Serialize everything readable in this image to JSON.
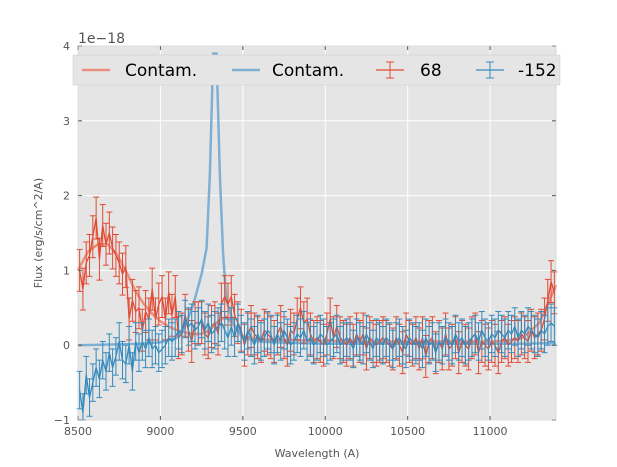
{
  "chart_data": {
    "type": "line",
    "title": "",
    "xlabel": "Wavelength (A)",
    "ylabel": "Flux (erg/s/cm^2/A)",
    "xlim": [
      8500,
      11400
    ],
    "ylim": [
      -1,
      4
    ],
    "y_offset_label": "1e−18",
    "x_ticks": [
      8500,
      9000,
      9500,
      10000,
      10500,
      11000
    ],
    "y_ticks": [
      -1,
      0,
      1,
      2,
      3,
      4
    ],
    "grid": true,
    "legend_position": "top",
    "colors": {
      "red": "#e24a33",
      "blue": "#348abd",
      "contam_red": "#e8907f",
      "contam_blue": "#7fb0d3",
      "plot_bg": "#e5e5e5",
      "grid": "#ffffff"
    },
    "legend": [
      {
        "label": "Contam.",
        "kind": "line",
        "color": "#e8907f"
      },
      {
        "label": "Contam.",
        "kind": "line",
        "color": "#7fb0d3"
      },
      {
        "label": "68",
        "kind": "errorbar",
        "color": "#e24a33"
      },
      {
        "label": "-152",
        "kind": "errorbar",
        "color": "#348abd"
      }
    ],
    "contam_red": {
      "x": [
        8500,
        8560,
        8620,
        8680,
        8740,
        8800,
        8850,
        8900,
        8950,
        9000,
        9050,
        9100,
        9150,
        9200,
        9250,
        9300,
        9350,
        9400,
        9450,
        9500,
        9600,
        9700,
        9800,
        9900,
        10000,
        10200,
        10400,
        10600,
        10800,
        11000,
        11100,
        11200,
        11300,
        11400
      ],
      "y": [
        1.0,
        1.25,
        1.35,
        1.35,
        1.2,
        0.95,
        0.72,
        0.55,
        0.42,
        0.32,
        0.25,
        0.2,
        0.17,
        0.15,
        0.15,
        0.2,
        0.32,
        0.38,
        0.25,
        0.12,
        0.08,
        0.07,
        0.07,
        0.06,
        0.06,
        0.05,
        0.05,
        0.05,
        0.05,
        0.05,
        0.06,
        0.1,
        0.3,
        0.8
      ]
    },
    "contam_blue": {
      "x": [
        8500,
        8700,
        8900,
        9000,
        9100,
        9150,
        9200,
        9250,
        9280,
        9300,
        9320,
        9340,
        9360,
        9380,
        9400,
        9450,
        9500,
        9600,
        9800,
        10000,
        10200,
        10400,
        10600,
        10800,
        11000,
        11200,
        11400
      ],
      "y": [
        0.0,
        0.01,
        0.02,
        0.04,
        0.1,
        0.25,
        0.55,
        0.95,
        1.3,
        2.3,
        3.9,
        3.9,
        2.3,
        1.25,
        0.6,
        0.25,
        0.1,
        0.05,
        0.03,
        0.02,
        0.02,
        0.02,
        0.02,
        0.02,
        0.02,
        0.02,
        0.03
      ]
    },
    "series": [
      {
        "name": "68",
        "color": "#e24a33",
        "x": [
          8510,
          8530,
          8550,
          8570,
          8590,
          8610,
          8630,
          8650,
          8670,
          8690,
          8710,
          8730,
          8750,
          8770,
          8790,
          8810,
          8830,
          8850,
          8870,
          8890,
          8910,
          8930,
          8950,
          8970,
          8990,
          9010,
          9030,
          9050,
          9070,
          9090,
          9110,
          9130,
          9150,
          9170,
          9190,
          9210,
          9230,
          9250,
          9270,
          9290,
          9310,
          9330,
          9350,
          9370,
          9390,
          9410,
          9430,
          9450,
          9470,
          9490,
          9510,
          9530,
          9550,
          9570,
          9590,
          9610,
          9630,
          9650,
          9670,
          9690,
          9710,
          9730,
          9750,
          9770,
          9790,
          9810,
          9830,
          9850,
          9870,
          9890,
          9910,
          9930,
          9950,
          9970,
          9990,
          10010,
          10030,
          10050,
          10070,
          10090,
          10110,
          10130,
          10150,
          10170,
          10190,
          10210,
          10230,
          10250,
          10270,
          10290,
          10310,
          10330,
          10350,
          10370,
          10390,
          10410,
          10430,
          10450,
          10470,
          10490,
          10510,
          10530,
          10550,
          10570,
          10590,
          10610,
          10630,
          10650,
          10670,
          10690,
          10710,
          10730,
          10750,
          10770,
          10790,
          10810,
          10830,
          10850,
          10870,
          10890,
          10910,
          10930,
          10950,
          10970,
          10990,
          11010,
          11030,
          11050,
          11070,
          11090,
          11110,
          11130,
          11150,
          11170,
          11190,
          11210,
          11230,
          11250,
          11270,
          11290,
          11310,
          11330,
          11350,
          11370,
          11390
        ],
        "y": [
          1.0,
          0.75,
          1.1,
          1.2,
          1.45,
          1.7,
          1.15,
          1.6,
          1.35,
          1.5,
          1.3,
          1.2,
          1.1,
          0.95,
          1.05,
          0.35,
          0.6,
          0.45,
          0.5,
          0.2,
          0.45,
          0.35,
          0.75,
          0.35,
          0.55,
          0.65,
          0.35,
          0.7,
          0.4,
          0.65,
          0.1,
          0.15,
          0.4,
          0.2,
          0.05,
          0.3,
          0.3,
          0.3,
          0.15,
          0.1,
          0.25,
          0.3,
          0.15,
          0.55,
          0.65,
          0.55,
          0.65,
          0.4,
          0.3,
          0.2,
          0.0,
          0.15,
          0.25,
          0.15,
          0.1,
          0.05,
          0.2,
          0.15,
          0.1,
          0.05,
          0.15,
          0.25,
          0.1,
          0.0,
          0.2,
          0.15,
          0.35,
          0.5,
          0.3,
          0.35,
          0.15,
          0.05,
          0.1,
          0.05,
          0.0,
          0.15,
          0.35,
          0.1,
          0.25,
          0.1,
          0.05,
          0.0,
          0.1,
          0.0,
          0.15,
          0.05,
          0.15,
          -0.05,
          0.1,
          0.05,
          0.0,
          0.05,
          0.1,
          0.05,
          0.0,
          -0.05,
          0.1,
          0.0,
          -0.1,
          0.15,
          0.05,
          0.0,
          0.1,
          -0.05,
          0.1,
          -0.15,
          0.05,
          0.1,
          -0.1,
          0.05,
          -0.05,
          0.15,
          -0.05,
          0.0,
          0.1,
          -0.1,
          0.05,
          0.0,
          -0.05,
          0.1,
          0.15,
          -0.1,
          0.05,
          0.0,
          -0.05,
          0.05,
          0.0,
          -0.1,
          0.05,
          0.1,
          0.0,
          0.05,
          0.1,
          0.05,
          0.15,
          0.1,
          0.05,
          0.2,
          0.1,
          0.15,
          0.2,
          0.35,
          0.6,
          0.85,
          0.7
        ],
        "err": 0.28
      },
      {
        "name": "-152",
        "color": "#348abd",
        "x": [
          8510,
          8530,
          8550,
          8570,
          8590,
          8610,
          8630,
          8650,
          8670,
          8690,
          8710,
          8730,
          8750,
          8770,
          8790,
          8810,
          8830,
          8850,
          8870,
          8890,
          8910,
          8930,
          8950,
          8970,
          8990,
          9010,
          9030,
          9050,
          9070,
          9090,
          9110,
          9130,
          9150,
          9170,
          9190,
          9210,
          9230,
          9250,
          9270,
          9290,
          9310,
          9330,
          9350,
          9370,
          9390,
          9410,
          9430,
          9450,
          9470,
          9490,
          9510,
          9530,
          9550,
          9570,
          9590,
          9610,
          9630,
          9650,
          9670,
          9690,
          9710,
          9730,
          9750,
          9770,
          9790,
          9810,
          9830,
          9850,
          9870,
          9890,
          9910,
          9930,
          9950,
          9970,
          9990,
          10010,
          10030,
          10050,
          10070,
          10090,
          10110,
          10130,
          10150,
          10170,
          10190,
          10210,
          10230,
          10250,
          10270,
          10290,
          10310,
          10330,
          10350,
          10370,
          10390,
          10410,
          10430,
          10450,
          10470,
          10490,
          10510,
          10530,
          10550,
          10570,
          10590,
          10610,
          10630,
          10650,
          10670,
          10690,
          10710,
          10730,
          10750,
          10770,
          10790,
          10810,
          10830,
          10850,
          10870,
          10890,
          10910,
          10930,
          10950,
          10970,
          10990,
          11010,
          11030,
          11050,
          11070,
          11090,
          11110,
          11130,
          11150,
          11170,
          11190,
          11210,
          11230,
          11250,
          11270,
          11290,
          11310,
          11330,
          11350,
          11370,
          11390
        ],
        "y": [
          -0.6,
          -0.9,
          -0.4,
          -0.7,
          -0.5,
          -0.3,
          -0.45,
          -0.2,
          -0.35,
          -0.1,
          -0.3,
          -0.15,
          0.05,
          -0.2,
          -0.25,
          0.0,
          -0.35,
          0.05,
          -0.1,
          0.05,
          -0.05,
          0.1,
          -0.05,
          0.0,
          -0.1,
          -0.05,
          0.0,
          0.1,
          0.05,
          0.1,
          0.2,
          0.15,
          0.35,
          0.25,
          0.3,
          0.2,
          0.25,
          0.35,
          0.2,
          0.3,
          0.15,
          0.2,
          0.25,
          0.3,
          0.2,
          0.1,
          0.25,
          0.1,
          0.3,
          0.15,
          0.05,
          0.2,
          0.1,
          0.0,
          0.15,
          0.05,
          0.1,
          0.2,
          0.15,
          0.0,
          0.15,
          0.05,
          0.2,
          0.1,
          0.0,
          0.05,
          0.15,
          0.1,
          0.2,
          0.05,
          0.1,
          0.0,
          0.05,
          0.15,
          0.1,
          0.0,
          0.05,
          0.1,
          0.15,
          0.0,
          0.05,
          0.1,
          0.05,
          -0.05,
          0.1,
          0.05,
          0.0,
          0.15,
          0.05,
          -0.05,
          0.1,
          0.05,
          0.0,
          0.1,
          0.05,
          -0.05,
          0.05,
          0.1,
          0.0,
          -0.05,
          0.1,
          0.05,
          0.0,
          0.05,
          -0.05,
          0.1,
          0.0,
          0.05,
          -0.1,
          0.05,
          0.0,
          0.1,
          0.05,
          0.0,
          0.15,
          0.05,
          0.1,
          0.0,
          0.05,
          0.1,
          0.15,
          0.05,
          0.2,
          0.1,
          0.05,
          0.15,
          0.1,
          0.2,
          0.15,
          0.1,
          0.2,
          0.15,
          0.25,
          0.1,
          0.2,
          0.15,
          0.25,
          0.2,
          0.15,
          0.1,
          0.2,
          0.15,
          0.25,
          0.3,
          0.25
        ],
        "err": 0.25
      }
    ]
  }
}
